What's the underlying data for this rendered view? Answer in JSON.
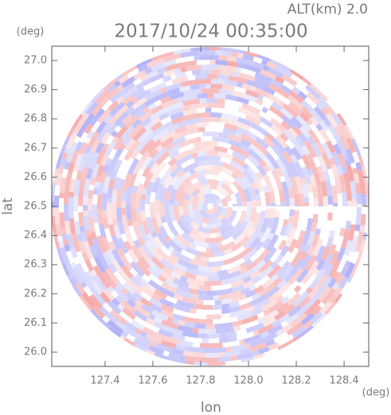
{
  "chart_data": {
    "type": "radar-ppi",
    "title": "2017/10/24 00:35:00",
    "subtitle": "ALT(km) 2.0",
    "xlabel": "lon",
    "ylabel": "lat",
    "x_unit": "(deg)",
    "y_unit": "(deg)",
    "xlim": [
      127.177,
      128.503
    ],
    "ylim": [
      25.951,
      27.049
    ],
    "xticks": [
      127.4,
      127.6,
      127.8,
      {
        "value": 128.0,
        "label": "128.0"
      },
      128.2,
      128.4
    ],
    "yticks": [
      {
        "value": 26.0,
        "label": "26.0"
      },
      26.1,
      26.2,
      26.3,
      26.4,
      26.5,
      26.6,
      26.7,
      26.8,
      26.9,
      {
        "value": 27.0,
        "label": "27.0"
      }
    ],
    "colors": [
      "#f49c9c",
      "#a6a6f6"
    ]
  }
}
